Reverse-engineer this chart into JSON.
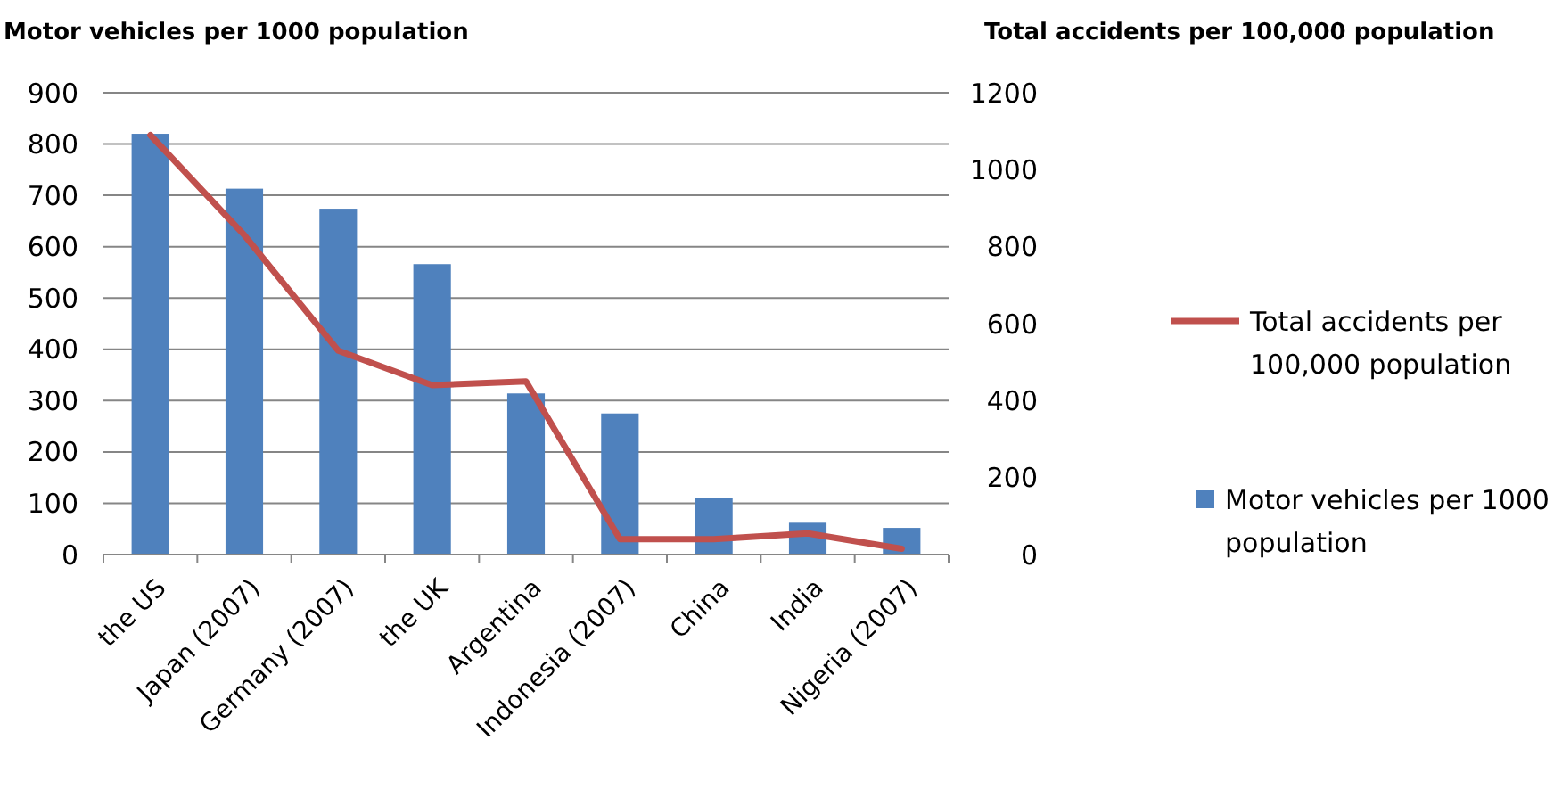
{
  "chart_data": {
    "type": "bar",
    "ylabel": "Motor vehicles per 1000 population",
    "y2label": "Total accidents per 100,000 population",
    "categories": [
      "the US",
      "Japan (2007)",
      "Germany (2007)",
      "the UK",
      "Argentina",
      "Indonesia (2007)",
      "China",
      "India",
      "Nigeria (2007)"
    ],
    "series": [
      {
        "name": "Total accidents per 100,000 population",
        "type": "line",
        "axis": "y2",
        "color": "#c0504d",
        "values": [
          1090,
          830,
          530,
          440,
          450,
          40,
          40,
          55,
          15
        ]
      },
      {
        "name": "Motor vehicles per 1000 population",
        "color": "#4f81bd",
        "values": [
          820,
          713,
          674,
          566,
          314,
          275,
          110,
          62,
          52
        ]
      }
    ],
    "ylim": [
      0,
      900
    ],
    "yticks": [
      0,
      100,
      200,
      300,
      400,
      500,
      600,
      700,
      800,
      900
    ],
    "y2lim": [
      0,
      1200
    ],
    "y2ticks": [
      0,
      200,
      400,
      600,
      800,
      1000,
      1200
    ],
    "grid": "y",
    "legend": "right"
  }
}
